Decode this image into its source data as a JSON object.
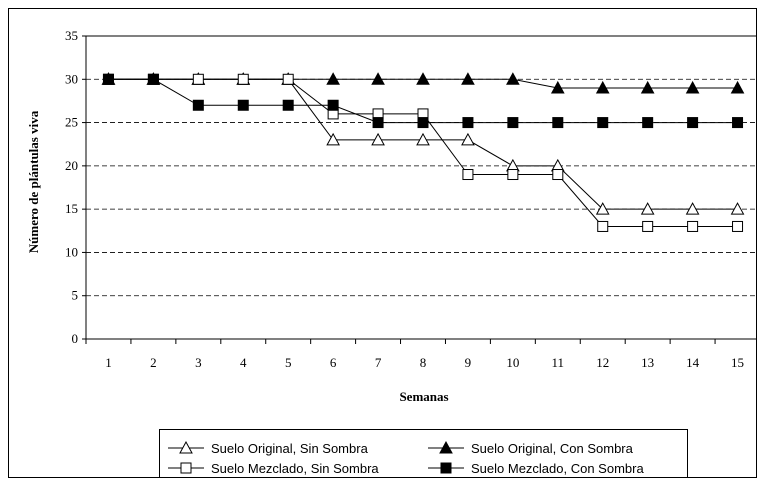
{
  "chart_data": {
    "type": "line",
    "x": [
      1,
      2,
      3,
      4,
      5,
      6,
      7,
      8,
      9,
      10,
      11,
      12,
      13,
      14,
      15
    ],
    "xlabel": "Semanas",
    "ylabel": "Número de plántulas viva",
    "ylim": [
      0,
      35
    ],
    "yticks": [
      0,
      5,
      10,
      15,
      20,
      25,
      30,
      35
    ],
    "grid": "horizontal dashed",
    "legend_position": "bottom",
    "line_style": "step",
    "series": [
      {
        "name": "Suelo Original, Sin Sombra",
        "marker": "open-triangle",
        "values": [
          30,
          30,
          30,
          30,
          30,
          23,
          23,
          23,
          23,
          20,
          20,
          15,
          15,
          15,
          15
        ]
      },
      {
        "name": "Suelo Original, Con Sombra",
        "marker": "filled-triangle",
        "values": [
          30,
          30,
          30,
          30,
          30,
          30,
          30,
          30,
          30,
          30,
          29,
          29,
          29,
          29,
          29
        ]
      },
      {
        "name": "Suelo Mezclado, Sin Sombra",
        "marker": "open-square",
        "values": [
          30,
          30,
          30,
          30,
          30,
          26,
          26,
          26,
          19,
          19,
          19,
          13,
          13,
          13,
          13
        ]
      },
      {
        "name": "Suelo Mezclado, Con Sombra",
        "marker": "filled-square",
        "values": [
          30,
          30,
          27,
          27,
          27,
          27,
          25,
          25,
          25,
          25,
          25,
          25,
          25,
          25,
          25
        ]
      }
    ]
  }
}
